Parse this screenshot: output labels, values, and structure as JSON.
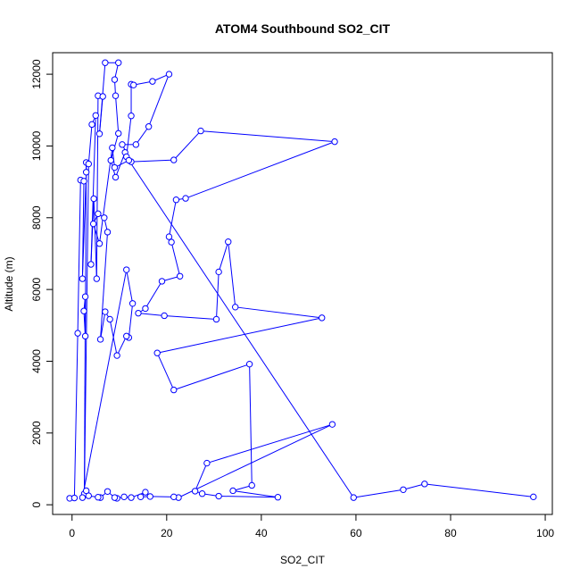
{
  "chart_data": {
    "type": "line",
    "title": "ATOM4 Southbound SO2_CIT",
    "xlabel": "SO2_CIT",
    "ylabel": "Altitude (m)",
    "xlim": [
      -4.1,
      101.5
    ],
    "ylim": [
      -270,
      12600
    ],
    "xticks": [
      0,
      20,
      40,
      60,
      80,
      100
    ],
    "yticks": [
      0,
      2000,
      4000,
      6000,
      8000,
      10000,
      12000
    ],
    "grid": false,
    "legend": "none",
    "series_color": "#0000ff",
    "series": [
      {
        "name": "",
        "points": [
          {
            "x": -0.5,
            "y": 180
          },
          {
            "x": 0.5,
            "y": 190
          },
          {
            "x": 1.2,
            "y": 4780
          },
          {
            "x": 1.8,
            "y": 9050
          },
          {
            "x": 2.5,
            "y": 9020
          },
          {
            "x": 2.2,
            "y": 6300
          },
          {
            "x": 3.0,
            "y": 9270
          },
          {
            "x": 3.0,
            "y": 9540
          },
          {
            "x": 2.8,
            "y": 4700
          },
          {
            "x": 2.5,
            "y": 5400
          },
          {
            "x": 2.8,
            "y": 5800
          },
          {
            "x": 2.6,
            "y": 310
          },
          {
            "x": 3.5,
            "y": 9500
          },
          {
            "x": 4.2,
            "y": 10600
          },
          {
            "x": 5.0,
            "y": 10850
          },
          {
            "x": 4.0,
            "y": 6700
          },
          {
            "x": 4.6,
            "y": 8530
          },
          {
            "x": 5.2,
            "y": 6300
          },
          {
            "x": 5.5,
            "y": 11400
          },
          {
            "x": 6.5,
            "y": 11380
          },
          {
            "x": 5.8,
            "y": 10340
          },
          {
            "x": 7.0,
            "y": 12320
          },
          {
            "x": 9.8,
            "y": 12320
          },
          {
            "x": 9.0,
            "y": 11850
          },
          {
            "x": 9.2,
            "y": 11400
          },
          {
            "x": 9.8,
            "y": 10350
          },
          {
            "x": 8.2,
            "y": 9600
          },
          {
            "x": 9.2,
            "y": 9130
          },
          {
            "x": 11.2,
            "y": 9820
          },
          {
            "x": 11.5,
            "y": 9700
          },
          {
            "x": 12.5,
            "y": 10840
          },
          {
            "x": 12.5,
            "y": 11720
          },
          {
            "x": 13.0,
            "y": 11700
          },
          {
            "x": 17.0,
            "y": 11800
          },
          {
            "x": 20.5,
            "y": 12000
          },
          {
            "x": 16.2,
            "y": 10540
          },
          {
            "x": 13.5,
            "y": 10040
          },
          {
            "x": 10.6,
            "y": 10040
          },
          {
            "x": 12.5,
            "y": 9560
          },
          {
            "x": 21.5,
            "y": 9610
          },
          {
            "x": 27.2,
            "y": 10420
          },
          {
            "x": 55.5,
            "y": 10120
          },
          {
            "x": 24.0,
            "y": 8540
          },
          {
            "x": 22.0,
            "y": 8500
          },
          {
            "x": 20.5,
            "y": 7470
          },
          {
            "x": 21.0,
            "y": 7320
          },
          {
            "x": 22.8,
            "y": 6370
          },
          {
            "x": 19.0,
            "y": 6230
          },
          {
            "x": 15.5,
            "y": 5470
          },
          {
            "x": 14.0,
            "y": 5340
          },
          {
            "x": 19.5,
            "y": 5270
          },
          {
            "x": 30.5,
            "y": 5170
          },
          {
            "x": 31.0,
            "y": 6490
          },
          {
            "x": 33.0,
            "y": 7330
          },
          {
            "x": 34.5,
            "y": 5510
          },
          {
            "x": 52.8,
            "y": 5210
          },
          {
            "x": 18.0,
            "y": 4230
          },
          {
            "x": 21.5,
            "y": 3200
          },
          {
            "x": 37.5,
            "y": 3920
          },
          {
            "x": 38.0,
            "y": 540
          },
          {
            "x": 34.0,
            "y": 390
          },
          {
            "x": 43.5,
            "y": 210
          },
          {
            "x": 31.0,
            "y": 240
          },
          {
            "x": 27.5,
            "y": 310
          },
          {
            "x": 26.0,
            "y": 380
          },
          {
            "x": 28.5,
            "y": 1160
          },
          {
            "x": 55.0,
            "y": 2240
          },
          {
            "x": 22.5,
            "y": 200
          },
          {
            "x": 21.5,
            "y": 220
          },
          {
            "x": 16.5,
            "y": 230
          },
          {
            "x": 14.5,
            "y": 220
          },
          {
            "x": 15.5,
            "y": 350
          },
          {
            "x": 12.5,
            "y": 200
          },
          {
            "x": 11.0,
            "y": 220
          },
          {
            "x": 9.5,
            "y": 180
          },
          {
            "x": 9.0,
            "y": 200
          },
          {
            "x": 7.5,
            "y": 370
          },
          {
            "x": 6.0,
            "y": 200
          },
          {
            "x": 5.5,
            "y": 210
          },
          {
            "x": 3.5,
            "y": 250
          },
          {
            "x": 3.0,
            "y": 390
          },
          {
            "x": 2.2,
            "y": 200
          },
          {
            "x": 11.5,
            "y": 6550
          },
          {
            "x": 12.8,
            "y": 5610
          },
          {
            "x": 12.0,
            "y": 4660
          },
          {
            "x": 11.5,
            "y": 4700
          },
          {
            "x": 9.5,
            "y": 4160
          },
          {
            "x": 8.0,
            "y": 5170
          },
          {
            "x": 7.0,
            "y": 5380
          },
          {
            "x": 6.0,
            "y": 4610
          },
          {
            "x": 7.5,
            "y": 7600
          },
          {
            "x": 6.8,
            "y": 8000
          },
          {
            "x": 5.5,
            "y": 8110
          },
          {
            "x": 4.5,
            "y": 7830
          },
          {
            "x": 5.8,
            "y": 7280
          },
          {
            "x": 8.5,
            "y": 9950
          },
          {
            "x": 9.0,
            "y": 9400
          },
          {
            "x": 12.0,
            "y": 9600
          },
          {
            "x": 59.5,
            "y": 200
          },
          {
            "x": 70.0,
            "y": 420
          },
          {
            "x": 74.5,
            "y": 580
          },
          {
            "x": 97.5,
            "y": 220
          }
        ]
      }
    ]
  }
}
